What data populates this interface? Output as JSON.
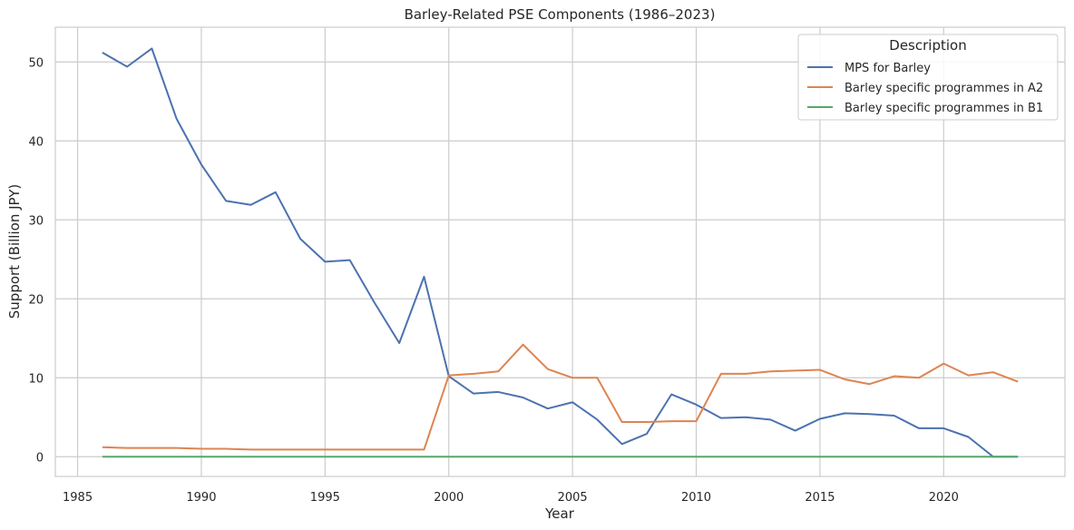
{
  "chart_data": {
    "type": "line",
    "title": "Barley-Related PSE Components (1986–2023)",
    "xlabel": "Year",
    "ylabel": "Support (Billion JPY)",
    "xlim": [
      1984.1,
      1985.0
    ],
    "ylim": [
      -2.5,
      54.4
    ],
    "x_ticks": [
      1985,
      1990,
      1995,
      2000,
      2005,
      2010,
      2015,
      2020
    ],
    "y_ticks": [
      0,
      10,
      20,
      30,
      40,
      50
    ],
    "grid": true,
    "legend_title": "Description",
    "legend_position": "top-right",
    "x": [
      1986,
      1987,
      1988,
      1989,
      1990,
      1991,
      1992,
      1993,
      1994,
      1995,
      1996,
      1997,
      1998,
      1999,
      2000,
      2001,
      2002,
      2003,
      2004,
      2005,
      2006,
      2007,
      2008,
      2009,
      2010,
      2011,
      2012,
      2013,
      2014,
      2015,
      2016,
      2017,
      2018,
      2019,
      2020,
      2021,
      2022,
      2023
    ],
    "series": [
      {
        "name": "MPS for Barley",
        "color": "#4c72b0",
        "values": [
          51.2,
          49.4,
          51.7,
          42.8,
          37.0,
          32.4,
          31.9,
          33.5,
          27.6,
          24.7,
          24.9,
          19.5,
          14.4,
          22.8,
          10.2,
          8.0,
          8.2,
          7.5,
          6.1,
          6.9,
          4.7,
          1.6,
          2.9,
          7.9,
          6.6,
          4.9,
          5.0,
          4.7,
          3.3,
          4.8,
          5.5,
          5.4,
          5.2,
          3.6,
          3.6,
          2.5,
          0.0,
          0.0
        ]
      },
      {
        "name": "Barley specific programmes in A2",
        "color": "#dd8452",
        "values": [
          1.2,
          1.1,
          1.1,
          1.1,
          1.0,
          1.0,
          0.9,
          0.9,
          0.9,
          0.9,
          0.9,
          0.9,
          0.9,
          0.9,
          10.3,
          10.5,
          10.8,
          14.2,
          11.1,
          10.0,
          10.0,
          4.4,
          4.4,
          4.5,
          4.5,
          10.5,
          10.5,
          10.8,
          10.9,
          11.0,
          9.8,
          9.2,
          10.2,
          10.0,
          11.8,
          10.3,
          10.7,
          9.5
        ]
      },
      {
        "name": "Barley specific programmes in B1",
        "color": "#55a868",
        "values": [
          0,
          0,
          0,
          0,
          0,
          0,
          0,
          0,
          0,
          0,
          0,
          0,
          0,
          0,
          0,
          0,
          0,
          0,
          0,
          0,
          0,
          0,
          0,
          0,
          0,
          0,
          0,
          0,
          0,
          0,
          0,
          0,
          0,
          0,
          0,
          0,
          0,
          0
        ]
      }
    ]
  }
}
